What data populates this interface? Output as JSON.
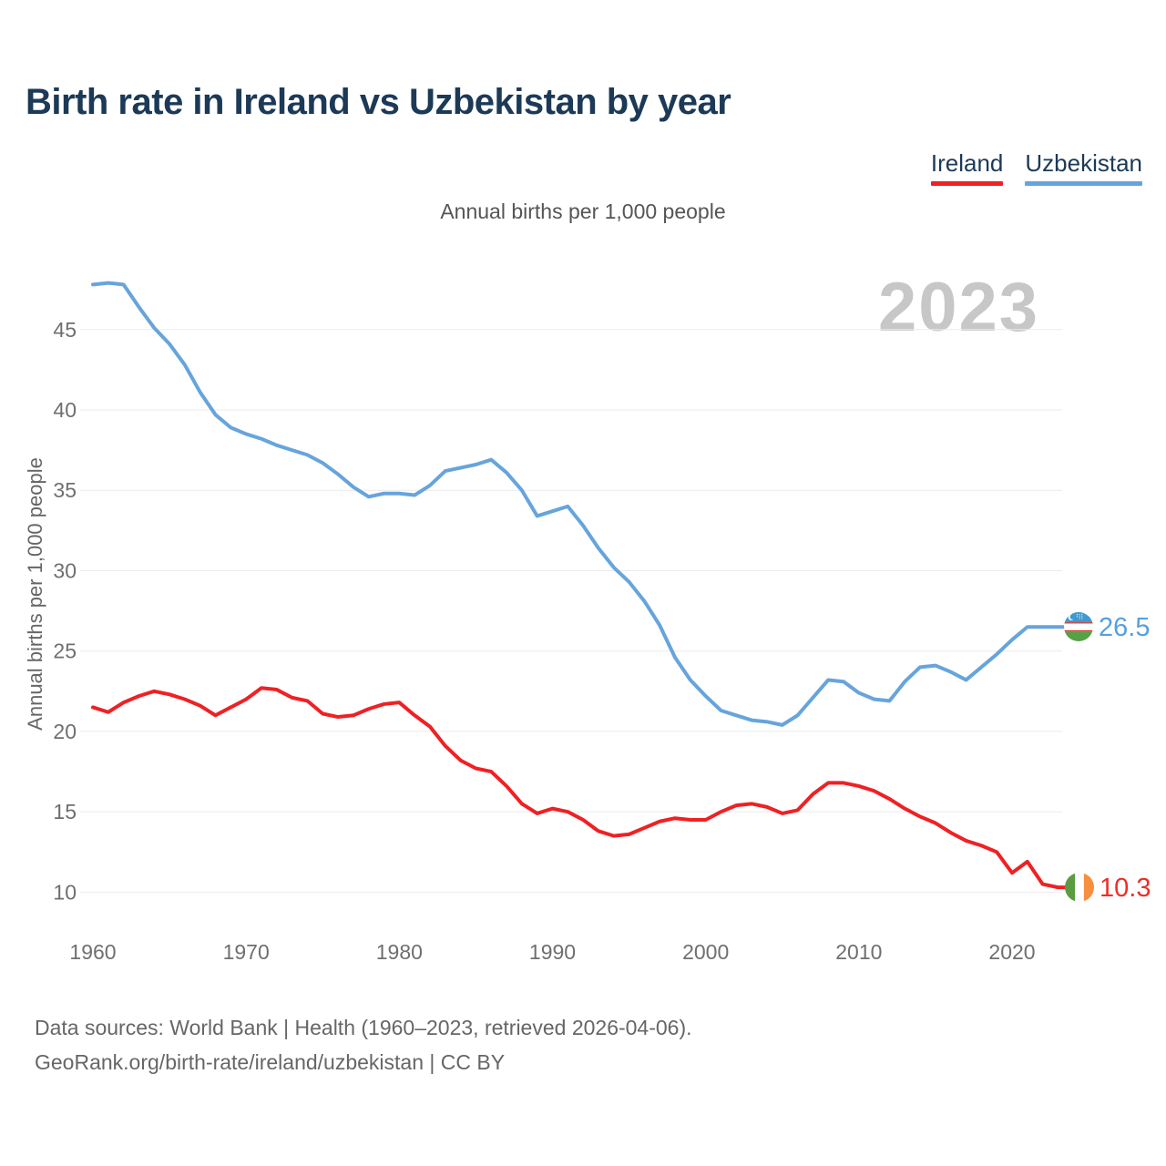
{
  "chart_data": {
    "type": "line",
    "title": "Birth rate in Ireland vs Uzbekistan by year",
    "subtitle": "Annual births per 1,000 people",
    "ylabel": "Annual births per 1,000 people",
    "watermark": "2023",
    "grid": "horizontal",
    "legend_position": "top-right",
    "x_ticks": [
      1960,
      1970,
      1980,
      1990,
      2000,
      2010,
      2020
    ],
    "y_ticks": [
      10,
      15,
      20,
      25,
      30,
      35,
      40,
      45
    ],
    "ylim": [
      8.3,
      48.5
    ],
    "xlim": [
      1959.2,
      2023.5
    ],
    "x": [
      1960,
      1961,
      1962,
      1963,
      1964,
      1965,
      1966,
      1967,
      1968,
      1969,
      1970,
      1971,
      1972,
      1973,
      1974,
      1975,
      1976,
      1977,
      1978,
      1979,
      1980,
      1981,
      1982,
      1983,
      1984,
      1985,
      1986,
      1987,
      1988,
      1989,
      1990,
      1991,
      1992,
      1993,
      1994,
      1995,
      1996,
      1997,
      1998,
      1999,
      2000,
      2001,
      2002,
      2003,
      2004,
      2005,
      2006,
      2007,
      2008,
      2009,
      2010,
      2011,
      2012,
      2013,
      2014,
      2015,
      2016,
      2017,
      2018,
      2019,
      2020,
      2021,
      2022,
      2023
    ],
    "series": [
      {
        "name": "Ireland",
        "color": "#ee2124",
        "end_label": "10.3",
        "end_label_color": "#ee2d26",
        "flag": "ireland",
        "values": [
          21.5,
          21.2,
          21.8,
          22.2,
          22.5,
          22.3,
          22.0,
          21.6,
          21.0,
          21.5,
          22.0,
          22.7,
          22.6,
          22.1,
          21.9,
          21.1,
          20.9,
          21.0,
          21.4,
          21.7,
          21.8,
          21.0,
          20.3,
          19.1,
          18.2,
          17.7,
          17.5,
          16.6,
          15.5,
          14.9,
          15.2,
          15.0,
          14.5,
          13.8,
          13.5,
          13.6,
          14.0,
          14.4,
          14.6,
          14.5,
          14.5,
          15.0,
          15.4,
          15.5,
          15.3,
          14.9,
          15.1,
          16.1,
          16.8,
          16.8,
          16.6,
          16.3,
          15.8,
          15.2,
          14.7,
          14.3,
          13.7,
          13.2,
          12.9,
          12.5,
          11.2,
          11.9,
          10.5,
          10.3
        ]
      },
      {
        "name": "Uzbekistan",
        "color": "#67a4dc",
        "end_label": "26.5",
        "end_label_color": "#569fe0",
        "flag": "uzbekistan",
        "values": [
          47.8,
          47.9,
          47.8,
          46.4,
          45.1,
          44.1,
          42.8,
          41.1,
          39.7,
          38.9,
          38.5,
          38.2,
          37.8,
          37.5,
          37.2,
          36.7,
          36.0,
          35.2,
          34.6,
          34.8,
          34.8,
          34.7,
          35.3,
          36.2,
          36.4,
          36.6,
          36.9,
          36.1,
          35.0,
          33.4,
          33.7,
          34.0,
          32.8,
          31.4,
          30.2,
          29.3,
          28.1,
          26.6,
          24.6,
          23.2,
          22.2,
          21.3,
          21.0,
          20.7,
          20.6,
          20.4,
          21.0,
          22.1,
          23.2,
          23.1,
          22.4,
          22.0,
          21.9,
          23.1,
          24.0,
          24.1,
          23.7,
          23.2,
          24.0,
          24.8,
          25.7,
          26.5,
          26.5,
          26.5
        ]
      }
    ]
  },
  "footer": {
    "line1": "Data sources: World Bank | Health (1960–2023, retrieved 2026-04-06).",
    "line2": "GeoRank.org/birth-rate/ireland/uzbekistan | CC BY"
  }
}
